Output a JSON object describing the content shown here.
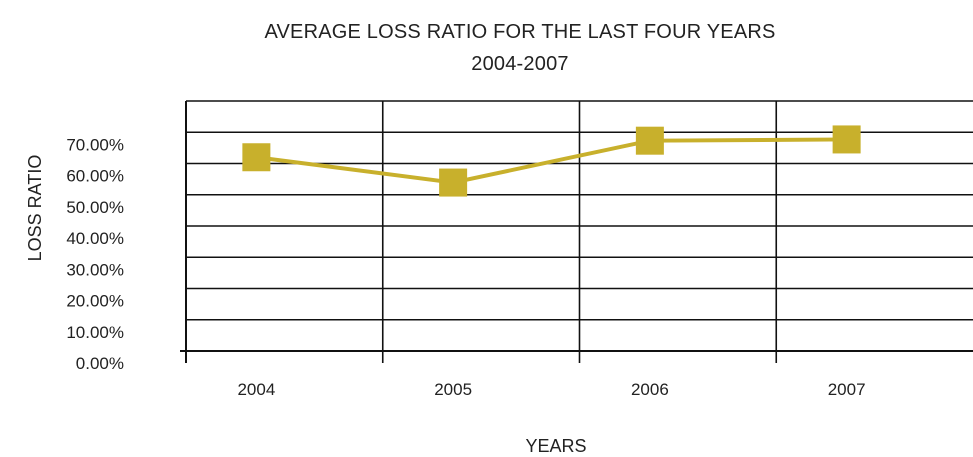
{
  "chart_data": {
    "type": "line",
    "title": "AVERAGE LOSS RATIO FOR THE LAST FOUR YEARS",
    "subtitle": "2004-2007",
    "xlabel": "YEARS",
    "ylabel": "LOSS RATIO",
    "categories": [
      "2004",
      "2005",
      "2006",
      "2007"
    ],
    "series": [
      {
        "values": [
          62.0,
          53.9,
          67.3,
          67.7
        ]
      }
    ],
    "ylim": [
      0,
      80
    ],
    "yticks": [
      0,
      10,
      20,
      30,
      40,
      50,
      60,
      70
    ],
    "ytick_labels": [
      "0.00%",
      "10.00%",
      "20.00%",
      "30.00%",
      "40.00%",
      "50.00%",
      "60.00%",
      "70.00%"
    ],
    "grid": true,
    "legend": "none",
    "colors": {
      "series": "#c8b02c",
      "grid": "#111111",
      "text": "#222222"
    }
  }
}
